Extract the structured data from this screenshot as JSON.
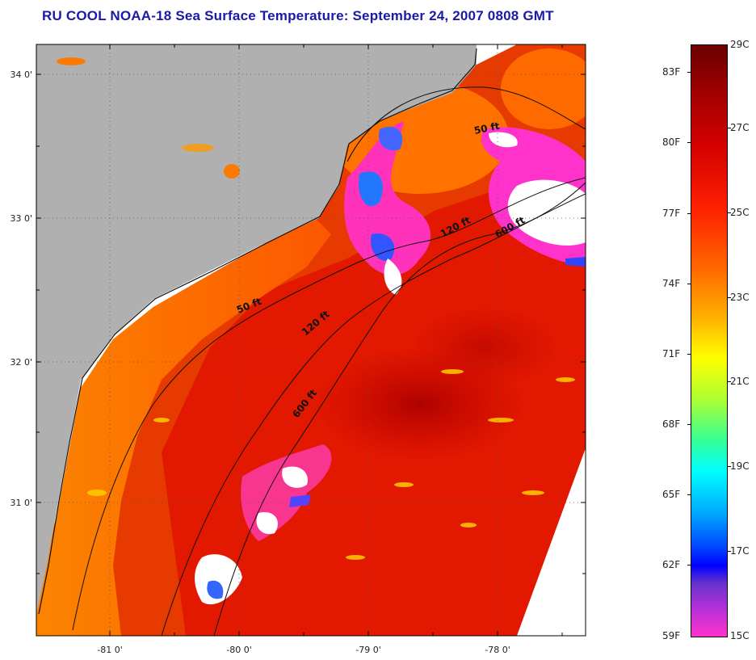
{
  "title": "RU COOL  NOAA-18  Sea Surface Temperature:  September 24, 2007 0808 GMT",
  "map": {
    "lat_labels": [
      "34 0'",
      "33 0'",
      "32 0'",
      "31 0'"
    ],
    "lon_labels": [
      "-81 0'",
      "-80 0'",
      "-79 0'",
      "-78 0'"
    ],
    "isobaths": [
      "50 ft",
      "120 ft",
      "600 ft",
      "50 ft",
      "120 ft",
      "600 ft"
    ],
    "colors": {
      "land": "#b0b0b0",
      "no_data": "#ffffff",
      "warm": "#e82800"
    }
  },
  "colorbar": {
    "fahrenheit_labels": [
      "83F",
      "80F",
      "77F",
      "74F",
      "71F",
      "68F",
      "65F",
      "62F",
      "59F"
    ],
    "celsius_labels": [
      "29C",
      "27C",
      "25C",
      "23C",
      "21C",
      "19C",
      "17C",
      "15C"
    ]
  }
}
